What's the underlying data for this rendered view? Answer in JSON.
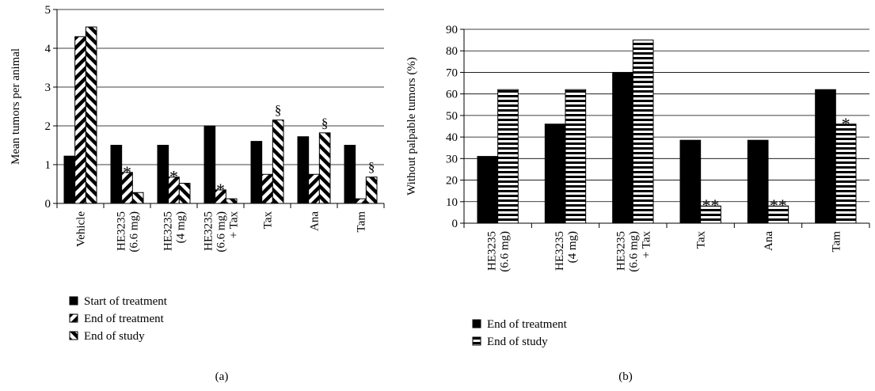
{
  "chart_data": [
    {
      "type": "bar",
      "panel_label": "(a)",
      "ylabel": "Mean tumors per animal",
      "ylim": [
        0,
        5
      ],
      "yticks": [
        0,
        1,
        2,
        3,
        4,
        5
      ],
      "grid": true,
      "legend_placement": "below",
      "categories": [
        "Vehicle",
        "HE3235 (6.6 mg)",
        "HE3235 (4 mg)",
        "HE3235 (6.6 mg) + Tax",
        "Tax",
        "Ana",
        "Tam"
      ],
      "category_lines": [
        [
          "Vehicle"
        ],
        [
          "HE3235",
          "(6.6 mg)"
        ],
        [
          "HE3235",
          "(4 mg)"
        ],
        [
          "HE3235",
          "(6.6 mg)",
          "+ Tax"
        ],
        [
          "Tax"
        ],
        [
          "Ana"
        ],
        [
          "Tam"
        ]
      ],
      "series": [
        {
          "name": "Start of treatment",
          "pattern": "solid",
          "values": [
            1.22,
            1.5,
            1.5,
            2.0,
            1.6,
            1.72,
            1.5
          ]
        },
        {
          "name": "End of treatment",
          "pattern": "diag-right",
          "values": [
            4.3,
            0.8,
            0.68,
            0.35,
            0.75,
            0.75,
            0.12
          ]
        },
        {
          "name": "End of study",
          "pattern": "diag-left",
          "values": [
            4.55,
            0.28,
            0.52,
            0.12,
            2.15,
            1.82,
            0.68
          ]
        }
      ],
      "annotations": [
        {
          "category": 1,
          "series": 1,
          "text": "*"
        },
        {
          "category": 2,
          "series": 1,
          "text": "*"
        },
        {
          "category": 3,
          "series": 1,
          "text": "*"
        },
        {
          "category": 4,
          "series": 2,
          "text": "§"
        },
        {
          "category": 5,
          "series": 2,
          "text": "§"
        },
        {
          "category": 6,
          "series": 2,
          "text": "§"
        }
      ]
    },
    {
      "type": "bar",
      "panel_label": "(b)",
      "ylabel": "Without palpable tumors (%)",
      "ylim": [
        0,
        90
      ],
      "yticks": [
        0,
        10,
        20,
        30,
        40,
        50,
        60,
        70,
        80,
        90
      ],
      "grid": true,
      "legend_placement": "below",
      "categories": [
        "HE3235 (6.6 mg)",
        "HE3235 (4 mg)",
        "HE3235 (6.6 mg) + Tax",
        "Tax",
        "Ana",
        "Tam"
      ],
      "category_lines": [
        [
          "HE3235",
          "(6.6 mg)"
        ],
        [
          "HE3235",
          "(4 mg)"
        ],
        [
          "HE3235",
          "(6.6 mg)",
          "+ Tax"
        ],
        [
          "Tax"
        ],
        [
          "Ana"
        ],
        [
          "Tam"
        ]
      ],
      "series": [
        {
          "name": "End of treatment",
          "pattern": "solid",
          "values": [
            31,
            46,
            70,
            38.5,
            38.5,
            62
          ]
        },
        {
          "name": "End of study",
          "pattern": "horizontal",
          "values": [
            62,
            62,
            85,
            8,
            8,
            46
          ]
        }
      ],
      "annotations": [
        {
          "category": 3,
          "series": 1,
          "text": "**"
        },
        {
          "category": 4,
          "series": 1,
          "text": "**"
        },
        {
          "category": 5,
          "series": 1,
          "text": "*"
        }
      ]
    }
  ]
}
